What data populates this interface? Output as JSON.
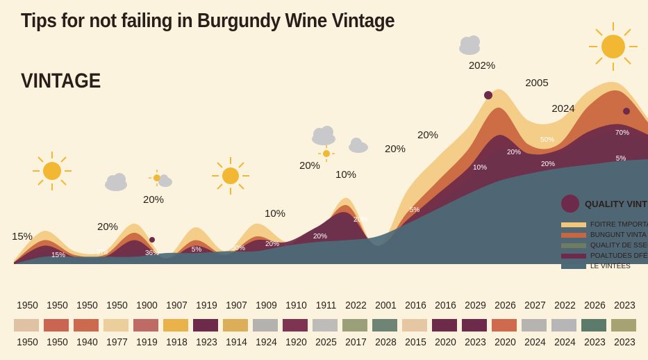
{
  "title": "Tips for not failing in Burgundy Wine Vintage",
  "subtitle": "VINTAGE",
  "chart_data": {
    "type": "area",
    "title": "Tips for not failing in Burgundy Wine Vintage",
    "subtitle": "VINTAGE",
    "x": [
      0,
      1,
      2,
      3,
      4,
      5,
      6,
      7,
      8,
      9,
      10,
      11,
      12,
      13,
      14,
      15,
      16,
      17,
      18,
      19,
      20,
      21
    ],
    "series": [
      {
        "name": "FOITRE TMPORTA",
        "color": "#f2c77a",
        "values": [
          2,
          18,
          7,
          7,
          22,
          4,
          20,
          7,
          22,
          12,
          14,
          36,
          9,
          40,
          58,
          74,
          95,
          78,
          78,
          94,
          98,
          78
        ]
      },
      {
        "name": "BUNGUNT VINTA",
        "color": "#c9653f",
        "values": [
          1,
          13,
          5,
          5,
          17,
          3,
          13,
          5,
          15,
          10,
          16,
          32,
          8,
          28,
          45,
          62,
          85,
          65,
          65,
          86,
          94,
          76
        ]
      },
      {
        "name": "QUALITY DE SSEC",
        "color": "#6e7c62",
        "values": [
          1,
          6,
          3,
          3,
          8,
          2,
          6,
          3,
          8,
          10,
          20,
          26,
          7,
          20,
          32,
          46,
          62,
          60,
          60,
          68,
          72,
          66
        ]
      },
      {
        "name": "POALTUDES DFÉLE",
        "color": "#6d2a4a",
        "values": [
          1,
          10,
          4,
          4,
          13,
          3,
          10,
          5,
          13,
          12,
          20,
          28,
          10,
          24,
          38,
          52,
          70,
          60,
          62,
          72,
          76,
          70
        ]
      },
      {
        "name": "LE VINTÉES",
        "color": "#4d6a78",
        "values": [
          0,
          4,
          4,
          4,
          4,
          6,
          6,
          7,
          7,
          10,
          12,
          13,
          15,
          22,
          30,
          38,
          45,
          49,
          52,
          54,
          56,
          57
        ]
      }
    ],
    "annotations": [
      {
        "text": "15%",
        "style": "outside"
      },
      {
        "text": "20%",
        "style": "outside"
      },
      {
        "text": "20%",
        "style": "outside"
      },
      {
        "text": "10%",
        "style": "outside"
      },
      {
        "text": "20%",
        "style": "outside"
      },
      {
        "text": "10%",
        "style": "outside"
      },
      {
        "text": "20%",
        "style": "outside"
      },
      {
        "text": "20%",
        "style": "outside"
      },
      {
        "text": "202%",
        "style": "outside"
      },
      {
        "text": "2005",
        "style": "outside"
      },
      {
        "text": "2024",
        "style": "outside"
      },
      {
        "text": "15%",
        "style": "inside"
      },
      {
        "text": "378",
        "style": "inside"
      },
      {
        "text": "36%",
        "style": "inside"
      },
      {
        "text": "5%",
        "style": "inside"
      },
      {
        "text": "30%",
        "style": "inside"
      },
      {
        "text": "20%",
        "style": "inside"
      },
      {
        "text": "20%",
        "style": "inside"
      },
      {
        "text": "20%",
        "style": "inside"
      },
      {
        "text": "5%",
        "style": "inside"
      },
      {
        "text": "10%",
        "style": "inside"
      },
      {
        "text": "20%",
        "style": "inside"
      },
      {
        "text": "50%",
        "style": "inside"
      },
      {
        "text": "20%",
        "style": "inside"
      },
      {
        "text": "70%",
        "style": "inside"
      },
      {
        "text": "5%",
        "style": "inside"
      }
    ],
    "legend": {
      "title": "QUALITY VINT",
      "placement": "right"
    },
    "year_row_top": [
      "1950",
      "1950",
      "1950",
      "1950",
      "1900",
      "1907",
      "1919",
      "1907",
      "1909",
      "1910",
      "1911",
      "2022",
      "2001",
      "2016",
      "2016",
      "2029",
      "2026",
      "2027",
      "2022",
      "2026",
      "2023"
    ],
    "swatch_colors": [
      "#dfc2a3",
      "#c96551",
      "#cc6a4f",
      "#eccd9c",
      "#c06a66",
      "#e9b24a",
      "#6d2a4a",
      "#dcae5a",
      "#b4b2ae",
      "#7e3352",
      "#bdbcb9",
      "#9aa07a",
      "#6e8576",
      "#e6c7a3",
      "#6d2a4a",
      "#6d2a4a",
      "#cf6a4f",
      "#b6b4b1",
      "#b6b6b8",
      "#5c7b6b",
      "#a6a271"
    ],
    "year_row_bottom": [
      "1950",
      "1950",
      "1940",
      "1977",
      "1919",
      "1918",
      "1923",
      "1914",
      "1924",
      "1920",
      "2025",
      "2017",
      "2028",
      "2015",
      "2020",
      "2023",
      "2020",
      "2024",
      "2024",
      "2023",
      "2023"
    ]
  }
}
